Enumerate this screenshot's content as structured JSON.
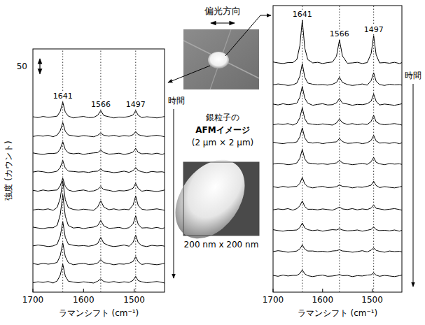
{
  "figure": {
    "polarization": "偏光方向",
    "afm_caption": [
      "銀粒子の",
      "AFMイメージ",
      "(2 μm × 2 μm)"
    ],
    "afm_zoom": "200 nm x 200 nm"
  },
  "chart_data": [
    {
      "type": "line",
      "color": "#000000",
      "y_label": "強度 (カウント)",
      "x_label": "ラマンシフト (cm⁻¹)",
      "time_label": "時間",
      "xlim": [
        1700,
        1440
      ],
      "xticks": [
        1700,
        1600,
        1500
      ],
      "ylim": [
        0,
        800
      ],
      "tick_labels": "x",
      "scale_bar": 50,
      "peaks": [
        1641,
        1566,
        1497
      ],
      "x": [
        1700,
        1690,
        1680,
        1670,
        1660,
        1652,
        1646,
        1641,
        1636,
        1630,
        1620,
        1610,
        1600,
        1590,
        1580,
        1572,
        1566,
        1560,
        1550,
        1540,
        1530,
        1520,
        1510,
        1502,
        1497,
        1492,
        1485,
        1475,
        1465,
        1455,
        1445,
        1440
      ],
      "series": [
        {
          "values": [
            577,
            574,
            578,
            575,
            577,
            579,
            595,
            625,
            592,
            579,
            573,
            576,
            578,
            574,
            575,
            582,
            597,
            581,
            577,
            573,
            576,
            575,
            578,
            583,
            597,
            582,
            574,
            577,
            575,
            573,
            576,
            578
          ]
        },
        {
          "values": [
            512,
            515,
            513,
            516,
            511,
            517,
            531,
            558,
            529,
            517,
            514,
            512,
            515,
            513,
            511,
            516,
            523,
            516,
            513,
            516,
            512,
            515,
            513,
            518,
            528,
            518,
            515,
            512,
            514,
            516,
            513,
            511
          ]
        },
        {
          "values": [
            458,
            455,
            453,
            456,
            456,
            458,
            471,
            495,
            469,
            458,
            455,
            457,
            453,
            456,
            458,
            459,
            467,
            459,
            454,
            455,
            457,
            453,
            456,
            461,
            473,
            460,
            455,
            456,
            454,
            457,
            453,
            456
          ]
        },
        {
          "values": [
            395,
            398,
            396,
            393,
            395,
            398,
            410,
            433,
            408,
            398,
            397,
            395,
            396,
            394,
            397,
            398,
            405,
            398,
            396,
            393,
            395,
            398,
            394,
            400,
            410,
            400,
            396,
            393,
            397,
            395,
            396,
            394
          ]
        },
        {
          "values": [
            335,
            332,
            336,
            333,
            335,
            336,
            350,
            375,
            348,
            336,
            331,
            334,
            336,
            332,
            333,
            338,
            348,
            337,
            335,
            331,
            334,
            333,
            336,
            342,
            358,
            341,
            332,
            335,
            333,
            331,
            334,
            336
          ]
        },
        {
          "values": [
            270,
            273,
            271,
            274,
            269,
            279,
            309,
            366,
            304,
            278,
            272,
            270,
            273,
            271,
            269,
            280,
            301,
            280,
            271,
            274,
            270,
            273,
            271,
            287,
            316,
            285,
            273,
            270,
            272,
            274,
            271,
            269
          ]
        },
        {
          "values": [
            214,
            211,
            209,
            212,
            212,
            220,
            255,
            321,
            250,
            219,
            211,
            213,
            209,
            212,
            214,
            219,
            236,
            218,
            210,
            211,
            213,
            209,
            212,
            225,
            251,
            223,
            211,
            212,
            210,
            213,
            209,
            212
          ]
        },
        {
          "values": [
            152,
            155,
            153,
            150,
            152,
            158,
            184,
            232,
            180,
            158,
            154,
            152,
            153,
            151,
            154,
            160,
            180,
            161,
            153,
            150,
            152,
            155,
            151,
            164,
            187,
            163,
            153,
            150,
            154,
            152,
            153,
            151
          ]
        },
        {
          "values": [
            94,
            91,
            95,
            92,
            94,
            98,
            120,
            162,
            117,
            97,
            90,
            93,
            95,
            91,
            92,
            96,
            107,
            97,
            94,
            90,
            93,
            92,
            95,
            101,
            117,
            100,
            91,
            94,
            92,
            90,
            93,
            95
          ]
        },
        {
          "values": [
            31,
            34,
            32,
            35,
            30,
            37,
            56,
            92,
            53,
            36,
            33,
            31,
            34,
            32,
            30,
            36,
            44,
            35,
            32,
            35,
            31,
            34,
            32,
            39,
            52,
            38,
            34,
            31,
            33,
            35,
            32,
            30
          ]
        }
      ]
    },
    {
      "type": "line",
      "color": "#000000",
      "x_label": "ラマンシフト (cm⁻¹)",
      "time_label": "時間",
      "xlim": [
        1700,
        1440
      ],
      "xticks": [
        1700,
        1600,
        1500
      ],
      "ylim": [
        0,
        940
      ],
      "tick_labels": "x",
      "peaks": [
        1641,
        1566,
        1497
      ],
      "x": [
        1700,
        1690,
        1680,
        1670,
        1660,
        1652,
        1646,
        1641,
        1636,
        1630,
        1620,
        1610,
        1600,
        1590,
        1580,
        1572,
        1566,
        1560,
        1550,
        1540,
        1530,
        1520,
        1510,
        1502,
        1497,
        1492,
        1485,
        1475,
        1465,
        1455,
        1445,
        1440
      ],
      "series": [
        {
          "values": [
            755,
            752,
            750,
            753,
            753,
            763,
            808,
            892,
            801,
            763,
            752,
            754,
            750,
            753,
            755,
            774,
            827,
            775,
            751,
            752,
            754,
            750,
            753,
            783,
            842,
            779,
            752,
            753,
            751,
            754,
            750,
            753
          ]
        },
        {
          "values": [
            680,
            683,
            681,
            678,
            680,
            686,
            708,
            750,
            705,
            686,
            682,
            680,
            681,
            679,
            682,
            688,
            705,
            688,
            681,
            678,
            680,
            683,
            679,
            694,
            720,
            692,
            681,
            678,
            682,
            680,
            681,
            679
          ]
        },
        {
          "values": [
            617,
            614,
            618,
            615,
            617,
            620,
            639,
            675,
            636,
            620,
            613,
            616,
            618,
            614,
            615,
            621,
            635,
            620,
            617,
            613,
            616,
            615,
            618,
            627,
            650,
            626,
            614,
            617,
            615,
            613,
            616,
            618
          ]
        },
        {
          "values": [
            549,
            552,
            550,
            553,
            548,
            554,
            572,
            605,
            569,
            553,
            551,
            549,
            552,
            550,
            548,
            555,
            568,
            556,
            550,
            553,
            549,
            552,
            550,
            560,
            580,
            559,
            552,
            549,
            551,
            553,
            550,
            548
          ]
        },
        {
          "values": [
            492,
            489,
            487,
            490,
            490,
            493,
            509,
            539,
            506,
            492,
            489,
            491,
            487,
            490,
            492,
            493,
            504,
            494,
            488,
            489,
            491,
            487,
            490,
            498,
            514,
            496,
            489,
            490,
            488,
            491,
            487,
            490
          ]
        },
        {
          "values": [
            420,
            423,
            421,
            418,
            420,
            424,
            439,
            468,
            437,
            424,
            422,
            420,
            421,
            419,
            422,
            424,
            432,
            424,
            421,
            418,
            420,
            423,
            419,
            428,
            442,
            426,
            421,
            418,
            422,
            420,
            421,
            419
          ]
        },
        {
          "values": [
            346,
            343,
            347,
            344,
            346,
            347,
            357,
            376,
            355,
            346,
            342,
            345,
            347,
            343,
            344,
            346,
            352,
            347,
            346,
            342,
            345,
            344,
            347,
            351,
            364,
            350,
            343,
            346,
            344,
            342,
            345,
            347
          ]
        },
        {
          "values": [
            270,
            273,
            271,
            274,
            269,
            274,
            283,
            299,
            281,
            272,
            272,
            270,
            273,
            271,
            269,
            274,
            279,
            273,
            271,
            274,
            270,
            273,
            271,
            276,
            286,
            275,
            273,
            270,
            272,
            274,
            271,
            269
          ]
        },
        {
          "values": [
            205,
            202,
            200,
            203,
            203,
            204,
            212,
            227,
            211,
            205,
            202,
            204,
            200,
            203,
            205,
            204,
            208,
            204,
            201,
            202,
            204,
            200,
            203,
            206,
            214,
            205,
            202,
            203,
            201,
            204,
            200,
            203
          ]
        },
        {
          "values": [
            133,
            136,
            134,
            131,
            133,
            135,
            142,
            155,
            141,
            135,
            135,
            133,
            134,
            132,
            135,
            136,
            139,
            135,
            134,
            131,
            133,
            136,
            132,
            138,
            145,
            137,
            134,
            131,
            135,
            133,
            134,
            132
          ]
        },
        {
          "values": [
            55,
            52,
            56,
            53,
            55,
            55,
            61,
            73,
            60,
            54,
            51,
            54,
            56,
            52,
            53,
            55,
            58,
            54,
            55,
            51,
            54,
            53,
            56,
            57,
            63,
            56,
            52,
            55,
            53,
            51,
            54,
            56
          ]
        }
      ]
    }
  ]
}
